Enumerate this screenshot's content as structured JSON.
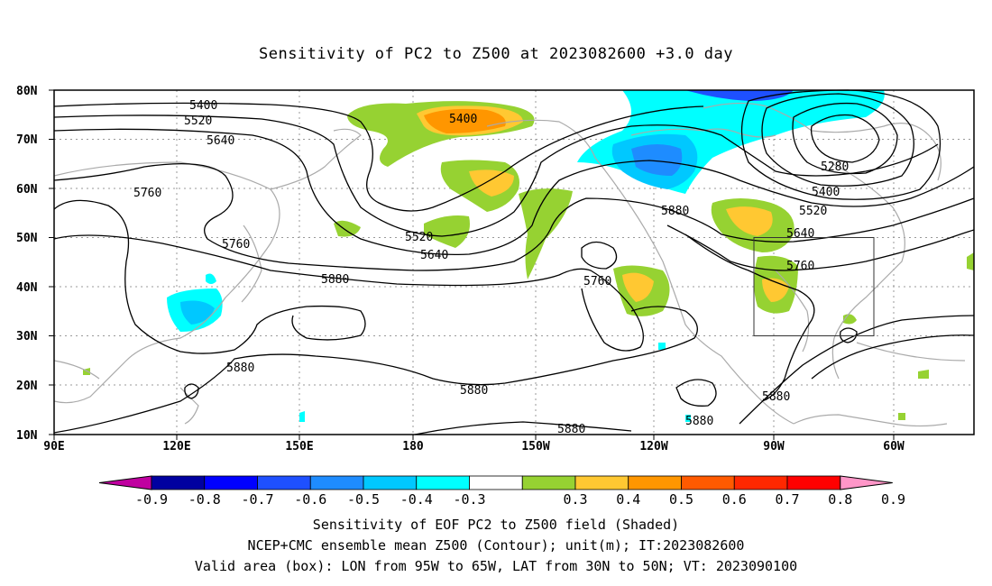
{
  "title": "Sensitivity of PC2 to Z500 at 2023082600 +3.0 day",
  "axes": {
    "lat_labels": [
      "80N",
      "70N",
      "60N",
      "50N",
      "40N",
      "30N",
      "20N",
      "10N"
    ],
    "lon_labels": [
      "90E",
      "120E",
      "150E",
      "180",
      "150W",
      "120W",
      "90W",
      "60W"
    ]
  },
  "contours": {
    "levels_labeled": [
      "5400",
      "5520",
      "5640",
      "5760",
      "5280",
      "5400",
      "5520",
      "5640",
      "5760",
      "5400",
      "5520",
      "5640",
      "5760",
      "5760",
      "5880",
      "5880",
      "5880",
      "5880",
      "5880",
      "5880",
      "5880"
    ]
  },
  "colorbar": {
    "labels": [
      "-0.9",
      "-0.8",
      "-0.7",
      "-0.6",
      "-0.5",
      "-0.4",
      "-0.3",
      "0.3",
      "0.4",
      "0.5",
      "0.6",
      "0.7",
      "0.8",
      "0.9"
    ],
    "colors": [
      "#0000a0",
      "#0000ff",
      "#1e50ff",
      "#1e8cff",
      "#00c8ff",
      "#00ffff",
      "#ffffff",
      "#96d232",
      "#ffc832",
      "#ff9600",
      "#ff5a00",
      "#ff2800",
      "#ff0000"
    ],
    "end_low": "#c000a0",
    "end_high": "#ff96c8"
  },
  "box": {
    "label": ""
  },
  "captions": {
    "line1": "Sensitivity of EOF PC2 to Z500 field (Shaded)",
    "line2": "NCEP+CMC ensemble mean Z500 (Contour); unit(m); IT:2023082600",
    "line3": "Valid area (box): LON from 95W to 65W, LAT from 30N to 50N; VT: 2023090100"
  }
}
